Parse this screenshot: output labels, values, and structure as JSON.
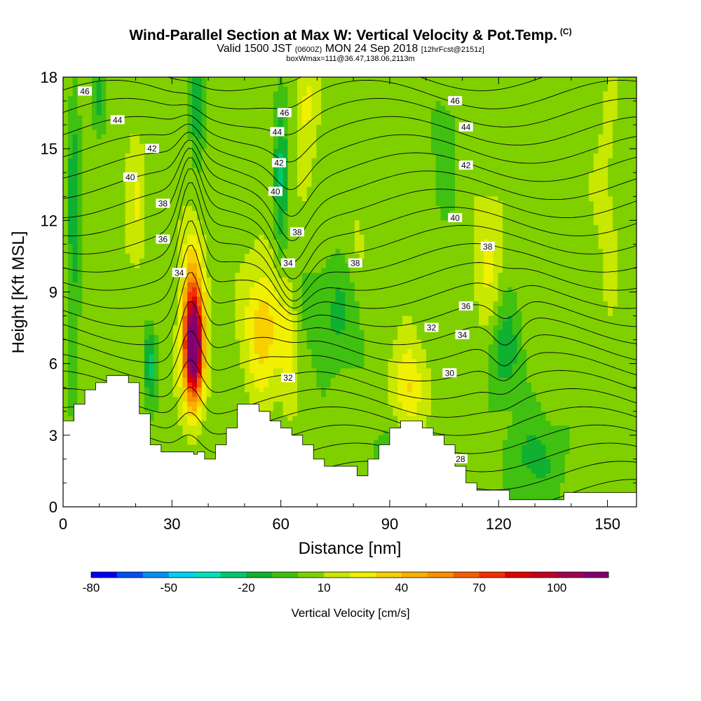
{
  "header": {
    "title": "Wind-Parallel Section at Max W: Vertical Velocity & Pot.Temp.",
    "copyright": "(C)",
    "subtitle_a": "Valid 1500 JST",
    "subtitle_b": "(0600Z)",
    "subtitle_c": "MON 24 Sep 2018",
    "subtitle_d": "[12hrFcst@2151z]",
    "subtitle2": "boxWmax=111@36.47,138.06,2113m"
  },
  "chart_data": {
    "type": "heatmap",
    "xlabel": "Distance [nm]",
    "ylabel": "Height [Kft MSL]",
    "xlim": [
      0,
      158
    ],
    "ylim": [
      0,
      18
    ],
    "x_ticks": [
      0,
      30,
      60,
      90,
      120,
      150
    ],
    "y_ticks": [
      0,
      3,
      6,
      9,
      12,
      15,
      18
    ],
    "colorbar": {
      "label": "Vertical Velocity [cm/s]",
      "min": -80,
      "max": 120,
      "step": 10,
      "tick_labels": [
        "-80",
        "-50",
        "-20",
        "10",
        "40",
        "70",
        "100"
      ],
      "tick_values": [
        -80,
        -50,
        -20,
        10,
        40,
        70,
        100
      ],
      "colors": [
        "#0000f0",
        "#0050f0",
        "#0090f0",
        "#00d0f0",
        "#00e0c0",
        "#00c870",
        "#10b030",
        "#40c010",
        "#80d000",
        "#c8e800",
        "#f0f000",
        "#f8d000",
        "#f8b000",
        "#f89000",
        "#f06000",
        "#f03000",
        "#e00000",
        "#c00020",
        "#a00050",
        "#800070"
      ]
    },
    "theta_label": "Pot.Temp. contour labels",
    "theta_labels": [
      {
        "text": "46",
        "x": 6,
        "y": 17.4
      },
      {
        "text": "44",
        "x": 15,
        "y": 16.2
      },
      {
        "text": "42",
        "x": 24.5,
        "y": 15.0
      },
      {
        "text": "40",
        "x": 18.5,
        "y": 13.8
      },
      {
        "text": "38",
        "x": 27.5,
        "y": 12.7
      },
      {
        "text": "36",
        "x": 27.5,
        "y": 11.2
      },
      {
        "text": "34",
        "x": 32,
        "y": 9.8
      },
      {
        "text": "46",
        "x": 61,
        "y": 16.5
      },
      {
        "text": "44",
        "x": 59,
        "y": 15.7
      },
      {
        "text": "42",
        "x": 59.5,
        "y": 14.4
      },
      {
        "text": "40",
        "x": 58.5,
        "y": 13.2
      },
      {
        "text": "38",
        "x": 64.5,
        "y": 11.5
      },
      {
        "text": "34",
        "x": 62,
        "y": 10.2
      },
      {
        "text": "32",
        "x": 62,
        "y": 5.4
      },
      {
        "text": "38",
        "x": 80.5,
        "y": 10.2
      },
      {
        "text": "46",
        "x": 108,
        "y": 17.0
      },
      {
        "text": "44",
        "x": 111,
        "y": 15.9
      },
      {
        "text": "42",
        "x": 111,
        "y": 14.3
      },
      {
        "text": "40",
        "x": 108,
        "y": 12.1
      },
      {
        "text": "38",
        "x": 117,
        "y": 10.9
      },
      {
        "text": "36",
        "x": 111,
        "y": 8.4
      },
      {
        "text": "32",
        "x": 101.5,
        "y": 7.5
      },
      {
        "text": "34",
        "x": 110,
        "y": 7.2
      },
      {
        "text": "30",
        "x": 106.5,
        "y": 5.6
      },
      {
        "text": "28",
        "x": 109.5,
        "y": 2.0
      }
    ],
    "terrain_profile": [
      [
        0,
        3.6
      ],
      [
        3,
        3.6
      ],
      [
        3,
        4.3
      ],
      [
        6,
        4.3
      ],
      [
        6,
        4.9
      ],
      [
        9,
        4.9
      ],
      [
        9,
        5.2
      ],
      [
        12,
        5.2
      ],
      [
        12,
        5.5
      ],
      [
        18,
        5.5
      ],
      [
        18,
        5.2
      ],
      [
        21,
        5.2
      ],
      [
        21,
        3.9
      ],
      [
        24,
        3.9
      ],
      [
        24,
        2.6
      ],
      [
        27,
        2.6
      ],
      [
        27,
        2.3
      ],
      [
        36,
        2.3
      ],
      [
        36,
        2.2
      ],
      [
        37,
        2.2
      ],
      [
        37,
        2.3
      ],
      [
        39,
        2.3
      ],
      [
        39,
        2.0
      ],
      [
        42,
        2.0
      ],
      [
        42,
        2.6
      ],
      [
        45,
        2.6
      ],
      [
        45,
        3.3
      ],
      [
        48,
        3.3
      ],
      [
        48,
        4.3
      ],
      [
        54,
        4.3
      ],
      [
        54,
        4.0
      ],
      [
        57,
        4.0
      ],
      [
        57,
        3.6
      ],
      [
        60,
        3.6
      ],
      [
        60,
        3.3
      ],
      [
        63,
        3.3
      ],
      [
        63,
        3.0
      ],
      [
        66,
        3.0
      ],
      [
        66,
        2.6
      ],
      [
        69,
        2.6
      ],
      [
        69,
        2.0
      ],
      [
        72,
        2.0
      ],
      [
        72,
        1.7
      ],
      [
        81,
        1.7
      ],
      [
        81,
        1.3
      ],
      [
        84,
        1.3
      ],
      [
        84,
        2.0
      ],
      [
        87,
        2.0
      ],
      [
        87,
        2.6
      ],
      [
        90,
        2.6
      ],
      [
        90,
        3.3
      ],
      [
        93,
        3.3
      ],
      [
        93,
        3.6
      ],
      [
        99,
        3.6
      ],
      [
        99,
        3.3
      ],
      [
        102,
        3.3
      ],
      [
        102,
        3.0
      ],
      [
        105,
        3.0
      ],
      [
        105,
        2.6
      ],
      [
        108,
        2.6
      ],
      [
        108,
        1.7
      ],
      [
        111,
        1.7
      ],
      [
        111,
        1.0
      ],
      [
        114,
        1.0
      ],
      [
        114,
        0.7
      ],
      [
        123,
        0.7
      ],
      [
        123,
        0.3
      ],
      [
        138,
        0.3
      ],
      [
        138,
        0.6
      ],
      [
        158,
        0.6
      ]
    ]
  }
}
